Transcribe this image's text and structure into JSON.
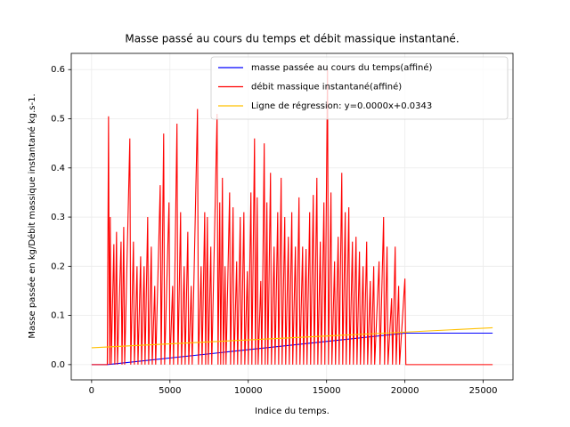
{
  "chart_data": {
    "type": "line",
    "title": "Masse passé au cours du temps et débit massique instantané.",
    "xlabel": "Indice du temps.",
    "ylabel": "Masse passée en kg/Débit massique instantané kg.s-1.",
    "xlim": [
      -1300,
      26900
    ],
    "ylim": [
      -0.031,
      0.633
    ],
    "xticks": [
      0,
      5000,
      10000,
      15000,
      20000,
      25000
    ],
    "yticks": [
      {
        "value": 0,
        "label": "0.0"
      },
      0.1,
      0.2,
      0.3,
      0.4,
      0.5,
      0.6
    ],
    "grid": true,
    "legend": "upper right",
    "series": [
      {
        "name": "masse passée au cours du temps(affiné)",
        "color": "#0000ff",
        "x": [
          0,
          1000,
          20000,
          25600
        ],
        "values": [
          0,
          0,
          0.064,
          0.064
        ]
      },
      {
        "name": "débit massique instantané(affiné)",
        "color": "#ff0000",
        "x": [
          0,
          1000,
          1080,
          1140,
          1190,
          1250,
          1420,
          1480,
          1590,
          1650,
          1880,
          1940,
          2050,
          2110,
          2440,
          2500,
          2670,
          2730,
          2900,
          2960,
          3130,
          3190,
          3350,
          3410,
          3580,
          3640,
          3810,
          3870,
          4030,
          4090,
          4380,
          4440,
          4600,
          4660,
          4940,
          5000,
          5170,
          5230,
          5450,
          5510,
          5680,
          5740,
          5910,
          5970,
          6140,
          6200,
          6360,
          6420,
          6760,
          6820,
          6990,
          7050,
          7220,
          7280,
          7390,
          7450,
          7610,
          7670,
          8010,
          8070,
          8180,
          8240,
          8350,
          8410,
          8520,
          8580,
          8810,
          8870,
          9030,
          9090,
          9260,
          9320,
          9490,
          9550,
          9720,
          9780,
          9940,
          10000,
          10170,
          10230,
          10400,
          10460,
          10570,
          10630,
          10800,
          10860,
          11020,
          11080,
          11190,
          11250,
          11420,
          11480,
          11650,
          11710,
          11880,
          11940,
          12100,
          12160,
          12330,
          12390,
          12560,
          12620,
          12780,
          12840,
          13010,
          13070,
          13240,
          13300,
          13470,
          13530,
          13690,
          13750,
          13920,
          13980,
          14150,
          14210,
          14380,
          14440,
          14600,
          14660,
          14830,
          14890,
          15060,
          15120,
          15280,
          15340,
          15510,
          15570,
          15740,
          15800,
          15970,
          16030,
          16190,
          16250,
          16420,
          16480,
          16650,
          16710,
          16880,
          16940,
          17100,
          17160,
          17330,
          17390,
          17560,
          17620,
          17790,
          17850,
          18010,
          18070,
          18350,
          18410,
          18640,
          18700,
          18860,
          18920,
          19150,
          19210,
          19380,
          19440,
          19600,
          19660,
          20000,
          20060,
          25600
        ],
        "values": [
          0,
          0,
          0.505,
          0,
          0.3,
          0,
          0.245,
          0,
          0.27,
          0,
          0.25,
          0,
          0.28,
          0,
          0.46,
          0,
          0.25,
          0,
          0.2,
          0,
          0.22,
          0,
          0.2,
          0,
          0.3,
          0,
          0.24,
          0,
          0.16,
          0,
          0.365,
          0,
          0.47,
          0,
          0.33,
          0,
          0.16,
          0,
          0.49,
          0,
          0.31,
          0,
          0.2,
          0,
          0.27,
          0,
          0.16,
          0,
          0.52,
          0,
          0.2,
          0,
          0.31,
          0,
          0.3,
          0,
          0.24,
          0,
          0.51,
          0,
          0.33,
          0,
          0.38,
          0,
          0.2,
          0,
          0.35,
          0,
          0.32,
          0,
          0.21,
          0,
          0.3,
          0,
          0.31,
          0,
          0.19,
          0,
          0.35,
          0,
          0.46,
          0,
          0.34,
          0,
          0.17,
          0,
          0.45,
          0,
          0.33,
          0,
          0.39,
          0,
          0.24,
          0,
          0.31,
          0,
          0.38,
          0,
          0.3,
          0,
          0.26,
          0,
          0.31,
          0,
          0.24,
          0,
          0.34,
          0,
          0.24,
          0,
          0.235,
          0,
          0.31,
          0,
          0.345,
          0,
          0.38,
          0,
          0.25,
          0,
          0.33,
          0,
          0.6,
          0,
          0.35,
          0,
          0.21,
          0,
          0.26,
          0,
          0.39,
          0,
          0.31,
          0,
          0.32,
          0,
          0.25,
          0,
          0.26,
          0,
          0.23,
          0,
          0.2,
          0,
          0.25,
          0,
          0.17,
          0,
          0.2,
          0,
          0.21,
          0,
          0.3,
          0,
          0.24,
          0,
          0.135,
          0,
          0.24,
          0,
          0.16,
          0,
          0.175,
          0,
          0
        ]
      },
      {
        "name": "Ligne de régression: y=0.0000x+0.0343",
        "color": "#ffc000",
        "x": [
          0,
          25600
        ],
        "values": [
          0.0343,
          0.075
        ]
      }
    ]
  }
}
